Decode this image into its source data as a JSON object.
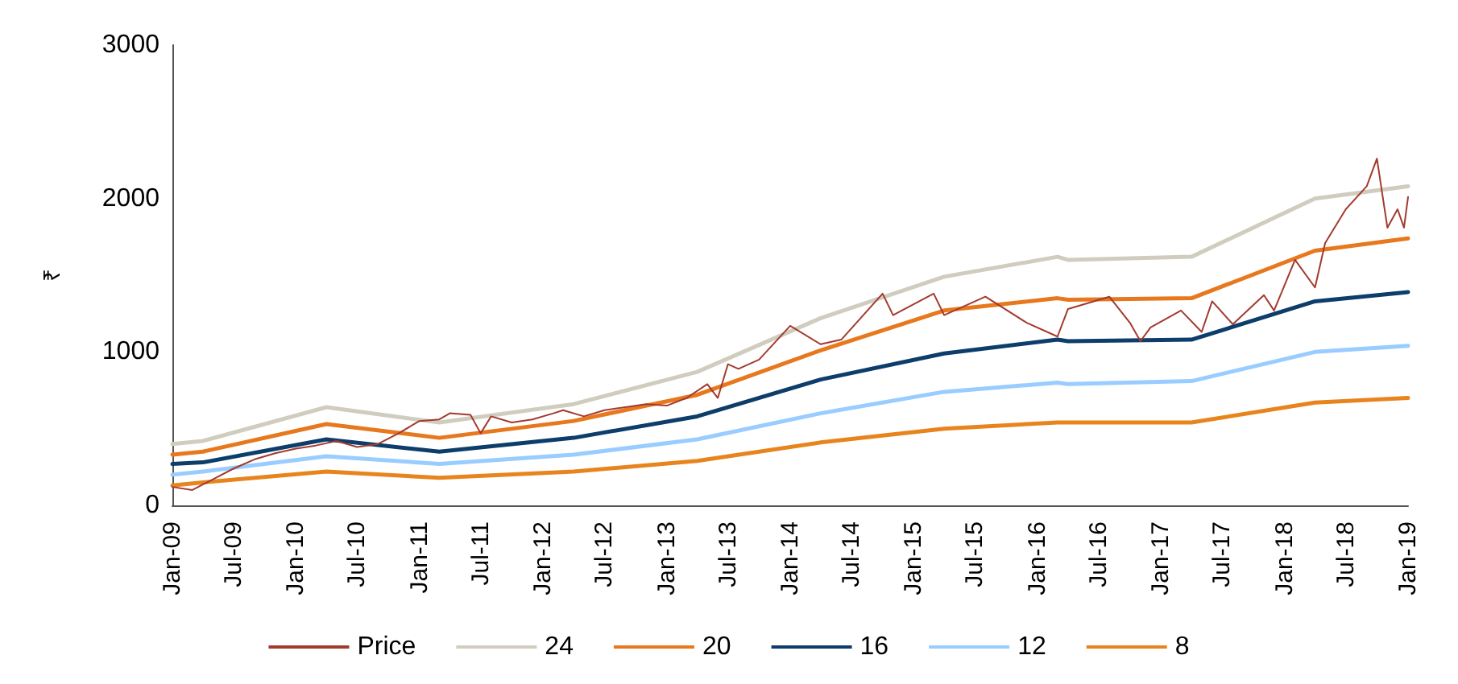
{
  "chart_data": {
    "type": "line",
    "ylabel": "₹",
    "xlim": [
      "2009-01",
      "2019-01"
    ],
    "ylim": [
      0,
      3000
    ],
    "yticks": [
      0,
      1000,
      2000,
      3000
    ],
    "xticks": [
      {
        "value": "2009-01",
        "label": "Jan-09"
      },
      {
        "value": "2009-07",
        "label": "Jul-09"
      },
      {
        "value": "2010-01",
        "label": "Jan-10"
      },
      {
        "value": "2010-07",
        "label": "Jul-10"
      },
      {
        "value": "2011-01",
        "label": "Jan-11"
      },
      {
        "value": "2011-07",
        "label": "Jul-11"
      },
      {
        "value": "2012-01",
        "label": "Jan-12"
      },
      {
        "value": "2012-07",
        "label": "Jul-12"
      },
      {
        "value": "2013-01",
        "label": "Jan-13"
      },
      {
        "value": "2013-07",
        "label": "Jul-13"
      },
      {
        "value": "2014-01",
        "label": "Jan-14"
      },
      {
        "value": "2014-07",
        "label": "Jul-14"
      },
      {
        "value": "2015-01",
        "label": "Jan-15"
      },
      {
        "value": "2015-07",
        "label": "Jul-15"
      },
      {
        "value": "2016-01",
        "label": "Jan-16"
      },
      {
        "value": "2016-07",
        "label": "Jul-16"
      },
      {
        "value": "2017-01",
        "label": "Jan-17"
      },
      {
        "value": "2017-07",
        "label": "Jul-17"
      },
      {
        "value": "2018-01",
        "label": "Jan-18"
      },
      {
        "value": "2018-07",
        "label": "Jul-18"
      },
      {
        "value": "2019-01",
        "label": "Jan-19"
      }
    ],
    "grid": false,
    "legend": "bottom",
    "marker": "none",
    "line_style": "solid",
    "series": [
      {
        "name": "Price",
        "color": "#a33a2e",
        "x": [
          "2009-01",
          "2009-03",
          "2009-05",
          "2009-07",
          "2009-09",
          "2009-11",
          "2010-01",
          "2010-03",
          "2010-05",
          "2010-07",
          "2010-09",
          "2010-11",
          "2011-01",
          "2011-03",
          "2011-04",
          "2011-06",
          "2011-07",
          "2011-08",
          "2011-10",
          "2011-12",
          "2012-02",
          "2012-03",
          "2012-05",
          "2012-07",
          "2012-09",
          "2012-11",
          "2013-01",
          "2013-03",
          "2013-05",
          "2013-06",
          "2013-07",
          "2013-08",
          "2013-10",
          "2014-01",
          "2014-04",
          "2014-06",
          "2014-10",
          "2014-11",
          "2015-03",
          "2015-04",
          "2015-08",
          "2015-12",
          "2016-03",
          "2016-04",
          "2016-08",
          "2016-10",
          "2016-11",
          "2016-12",
          "2017-03",
          "2017-05",
          "2017-06",
          "2017-08",
          "2017-11",
          "2017-12",
          "2018-02",
          "2018-04",
          "2018-05",
          "2018-07",
          "2018-09",
          "2018-10",
          "2018-11",
          "2018-12",
          "2018-12-20",
          "2019-01"
        ],
        "values": [
          120,
          100,
          170,
          240,
          300,
          340,
          370,
          390,
          420,
          380,
          400,
          470,
          550,
          560,
          600,
          590,
          470,
          580,
          540,
          560,
          600,
          620,
          580,
          620,
          640,
          660,
          650,
          700,
          790,
          700,
          920,
          890,
          950,
          1170,
          1050,
          1080,
          1380,
          1240,
          1380,
          1240,
          1360,
          1190,
          1100,
          1280,
          1360,
          1190,
          1070,
          1160,
          1270,
          1130,
          1330,
          1180,
          1370,
          1270,
          1600,
          1420,
          1710,
          1930,
          2080,
          2260,
          1810,
          1930,
          1810,
          2010
        ]
      },
      {
        "name": "24",
        "color": "#d0cdbf",
        "x": [
          "2009-01",
          "2009-04",
          "2010-04",
          "2011-03",
          "2012-04",
          "2013-04",
          "2014-04",
          "2015-04",
          "2016-03",
          "2016-04",
          "2017-04",
          "2018-04",
          "2019-01"
        ],
        "values": [
          400,
          420,
          640,
          540,
          660,
          870,
          1220,
          1490,
          1620,
          1600,
          1620,
          2000,
          2080
        ]
      },
      {
        "name": "20",
        "color": "#e8781e",
        "x": [
          "2009-01",
          "2009-04",
          "2010-04",
          "2011-03",
          "2012-04",
          "2013-04",
          "2014-04",
          "2015-04",
          "2016-03",
          "2016-04",
          "2017-04",
          "2018-04",
          "2019-01"
        ],
        "values": [
          330,
          350,
          530,
          440,
          550,
          720,
          1010,
          1270,
          1350,
          1340,
          1350,
          1660,
          1740
        ]
      },
      {
        "name": "16",
        "color": "#0d3d6b",
        "x": [
          "2009-01",
          "2009-04",
          "2010-04",
          "2011-03",
          "2012-04",
          "2013-04",
          "2014-04",
          "2015-04",
          "2016-03",
          "2016-04",
          "2017-04",
          "2018-04",
          "2019-01"
        ],
        "values": [
          270,
          280,
          430,
          350,
          440,
          580,
          820,
          990,
          1080,
          1070,
          1080,
          1330,
          1390
        ]
      },
      {
        "name": "12",
        "color": "#99ccff",
        "x": [
          "2009-01",
          "2009-04",
          "2010-04",
          "2011-03",
          "2012-04",
          "2013-04",
          "2014-04",
          "2015-04",
          "2016-03",
          "2016-04",
          "2017-04",
          "2018-04",
          "2019-01"
        ],
        "values": [
          200,
          220,
          320,
          270,
          330,
          430,
          600,
          740,
          800,
          790,
          810,
          1000,
          1040
        ]
      },
      {
        "name": "8",
        "color": "#e8841e",
        "x": [
          "2009-01",
          "2009-04",
          "2010-04",
          "2011-03",
          "2012-04",
          "2013-04",
          "2014-04",
          "2015-04",
          "2016-03",
          "2016-04",
          "2017-04",
          "2018-04",
          "2019-01"
        ],
        "values": [
          130,
          150,
          220,
          180,
          220,
          290,
          410,
          500,
          540,
          540,
          540,
          670,
          700
        ]
      }
    ]
  }
}
